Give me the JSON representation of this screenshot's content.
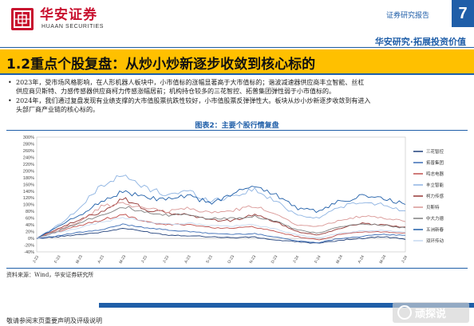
{
  "header": {
    "logo_cn": "华安证券",
    "logo_en": "HUAAN SECURITIES",
    "report_type": "证券研究报告",
    "page_number": "7",
    "slogan": "华安研究·拓展投资价值"
  },
  "section": {
    "title": "1.2重点个股复盘：从炒小炒新逐步收敛到核心标的"
  },
  "bullets": [
    {
      "line1": "2023年，受市场风格影响，在人形机器人板块中，小市值标的涨幅显著高于大市值标的；谐波减速器供应商丰立智能、丝杠",
      "line2": "供应商贝斯特、力感传感器供应商柯力传感涨幅居前；机构持仓较多的三花智控、拓普集团弹性弱于小市值标的。"
    },
    {
      "line1": "2024年，我们通过复盘发现有业绩支撑的大市值股票抗跌性较好，小市值股票反弹弹性大。板块从炒小炒新逐步收敛到有进入",
      "line2": "头部厂商产业链的核心标的。"
    }
  ],
  "figure": {
    "title": "图表2：主要个股行情复盘",
    "source": "资料来源：Wind，华安证券研究所"
  },
  "chart_data": {
    "type": "line",
    "title": "",
    "ylim": [
      -40,
      300
    ],
    "y_ticks": [
      "-40%",
      "-20%",
      "0%",
      "20%",
      "40%",
      "60%",
      "80%",
      "100%",
      "120%",
      "140%",
      "160%",
      "180%",
      "200%",
      "220%",
      "240%",
      "260%",
      "280%",
      "300%"
    ],
    "x_ticks": [
      "J-23",
      "F-23",
      "M-23",
      "A-23",
      "M-23",
      "J-23",
      "J-23",
      "A-23",
      "S-23",
      "O-23",
      "N-23",
      "D-23",
      "J-24",
      "F-24",
      "M-24",
      "A-24",
      "M-24",
      "J-24"
    ],
    "legend_position": "right",
    "series": [
      {
        "name": "三花智控",
        "color": "#1f3f7a",
        "values": [
          0,
          5,
          12,
          18,
          30,
          20,
          10,
          8,
          5,
          2,
          4,
          -5,
          -10,
          -15,
          -5,
          0,
          5,
          -2
        ]
      },
      {
        "name": "拓普集团",
        "color": "#3b6cb5",
        "values": [
          0,
          8,
          18,
          25,
          42,
          32,
          25,
          20,
          15,
          12,
          14,
          5,
          -8,
          -12,
          0,
          6,
          12,
          8
        ]
      },
      {
        "name": "鸣志电器",
        "color": "#c0504d",
        "values": [
          0,
          20,
          38,
          55,
          70,
          48,
          40,
          42,
          32,
          30,
          34,
          20,
          5,
          -5,
          12,
          18,
          20,
          15
        ]
      },
      {
        "name": "丰立智能",
        "color": "#8db3e2",
        "values": [
          0,
          40,
          90,
          160,
          185,
          150,
          130,
          140,
          110,
          125,
          145,
          110,
          70,
          60,
          95,
          105,
          100,
          80
        ]
      },
      {
        "name": "柯力传感",
        "color": "#953735",
        "values": [
          0,
          30,
          55,
          80,
          120,
          85,
          75,
          70,
          55,
          52,
          70,
          50,
          20,
          10,
          30,
          45,
          40,
          32
        ]
      },
      {
        "name": "贝斯特",
        "color": "#d99694",
        "values": [
          0,
          25,
          50,
          95,
          105,
          88,
          80,
          90,
          75,
          82,
          95,
          75,
          40,
          35,
          55,
          65,
          60,
          50
        ]
      },
      {
        "name": "中大力德",
        "color": "#7f7f7f",
        "values": [
          0,
          22,
          48,
          70,
          95,
          75,
          68,
          72,
          58,
          60,
          66,
          52,
          25,
          15,
          35,
          42,
          40,
          30
        ]
      },
      {
        "name": "五洲新春",
        "color": "#1f5ea8",
        "values": [
          0,
          35,
          70,
          110,
          140,
          120,
          115,
          125,
          105,
          128,
          160,
          130,
          90,
          80,
          110,
          125,
          118,
          100
        ]
      },
      {
        "name": "双环传动",
        "color": "#c6d9f1",
        "values": [
          0,
          18,
          32,
          48,
          62,
          50,
          42,
          45,
          38,
          36,
          40,
          28,
          10,
          2,
          15,
          22,
          24,
          18
        ]
      }
    ]
  },
  "footer": {
    "disclaimer": "敬请参阅末页重要声明及评级说明"
  },
  "watermark": {
    "text": "顽探说"
  }
}
